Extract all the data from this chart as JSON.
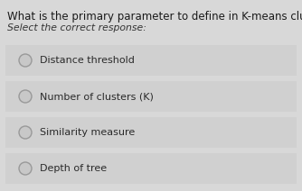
{
  "title": "What is the primary parameter to define in K-means clustering?",
  "subtitle": "Select the correct response:",
  "options": [
    "Distance threshold",
    "Number of clusters (K)",
    "Similarity measure",
    "Depth of tree"
  ],
  "bg_color": "#d8d8d8",
  "option_bg_even": "#d0d0d0",
  "option_bg_odd": "#cccccc",
  "title_color": "#1a1a1a",
  "subtitle_color": "#333333",
  "option_text_color": "#2a2a2a",
  "radio_edge_color": "#999999",
  "radio_fill_color": "#c8c8c8",
  "title_fontsize": 8.5,
  "subtitle_fontsize": 7.8,
  "option_fontsize": 8.0
}
